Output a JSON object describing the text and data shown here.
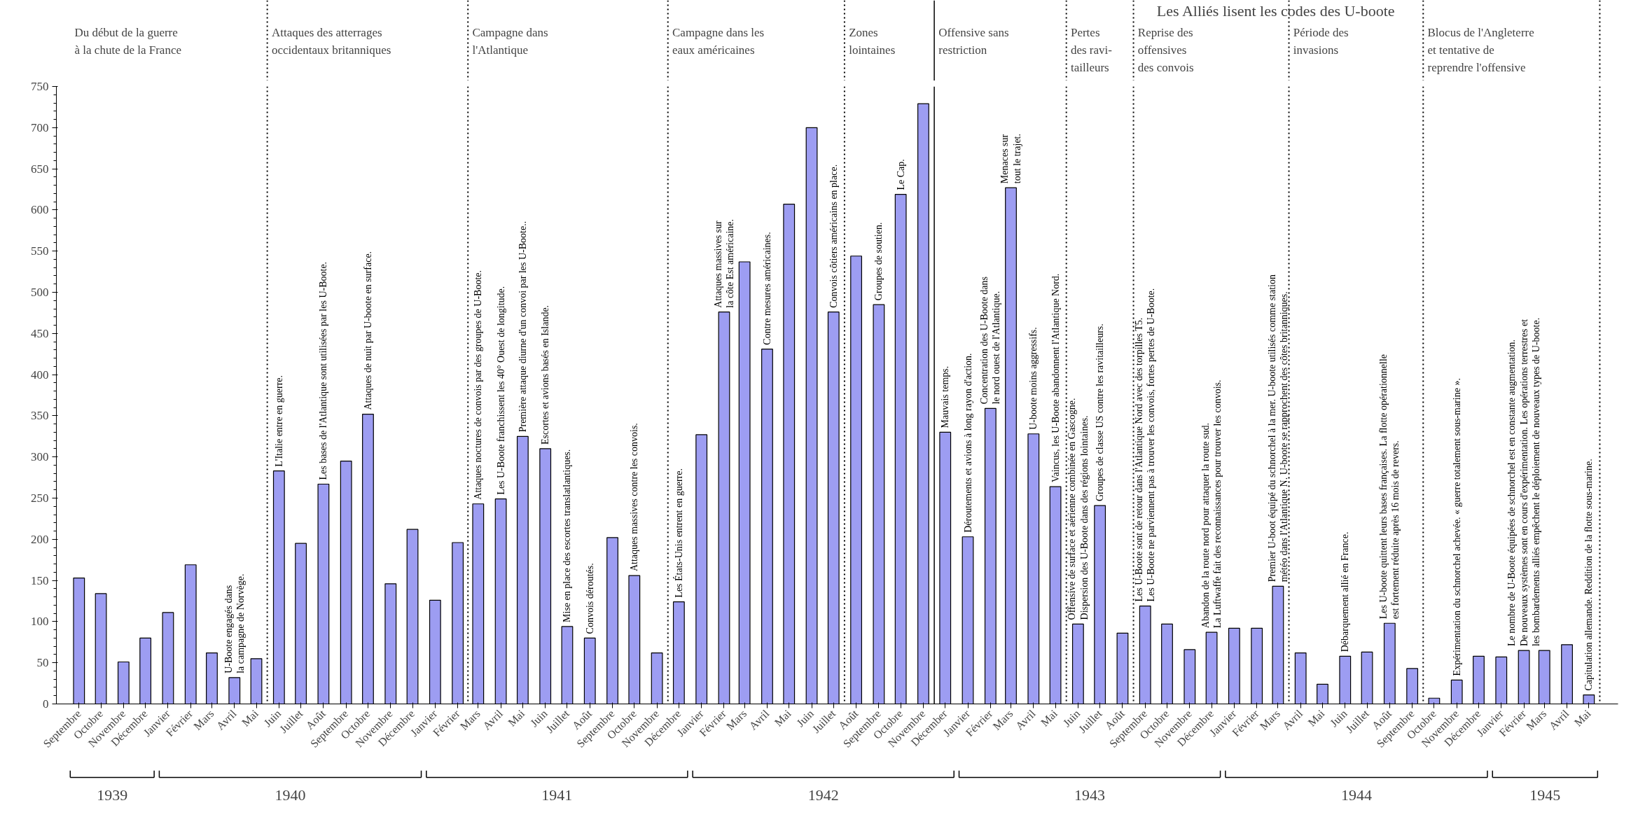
{
  "chart_data": {
    "type": "bar",
    "x": [
      "1939-09",
      "1939-10",
      "1939-11",
      "1939-12",
      "1940-01",
      "1940-02",
      "1940-03",
      "1940-04",
      "1940-05",
      "1940-06",
      "1940-07",
      "1940-08",
      "1940-09",
      "1940-10",
      "1940-11",
      "1940-12",
      "1941-01",
      "1941-02",
      "1941-03",
      "1941-04",
      "1941-05",
      "1941-06",
      "1941-07",
      "1941-08",
      "1941-09",
      "1941-10",
      "1941-11",
      "1941-12",
      "1942-01",
      "1942-02",
      "1942-03",
      "1942-04",
      "1942-05",
      "1942-06",
      "1942-07",
      "1942-08",
      "1942-09",
      "1942-10",
      "1942-11",
      "1942-12",
      "1943-01",
      "1943-02",
      "1943-03",
      "1943-04",
      "1943-05",
      "1943-06",
      "1943-07",
      "1943-08",
      "1943-09",
      "1943-10",
      "1943-11",
      "1943-12",
      "1944-01",
      "1944-02",
      "1944-03",
      "1944-04",
      "1944-05",
      "1944-06",
      "1944-07",
      "1944-08",
      "1944-09",
      "1944-10",
      "1944-11",
      "1944-12",
      "1945-01",
      "1945-02",
      "1945-03",
      "1945-04",
      "1945-05"
    ],
    "values": [
      153,
      134,
      51,
      80,
      111,
      169,
      62,
      32,
      55,
      283,
      195,
      267,
      295,
      352,
      146,
      212,
      126,
      196,
      243,
      249,
      325,
      310,
      94,
      80,
      202,
      156,
      62,
      124,
      327,
      476,
      537,
      431,
      607,
      700,
      476,
      544,
      485,
      619,
      729,
      330,
      203,
      359,
      627,
      328,
      264,
      97,
      241,
      86,
      119,
      97,
      66,
      87,
      92,
      92,
      143,
      62,
      24,
      58,
      63,
      98,
      43,
      7,
      29,
      58,
      57,
      65,
      65,
      72,
      11
    ],
    "color": "#9d9df2",
    "xlim": [
      "1939-08-01",
      "1945-06-10"
    ],
    "ylim": [
      0,
      750
    ],
    "yticks": [
      0,
      50,
      100,
      150,
      200,
      250,
      300,
      350,
      400,
      450,
      500,
      550,
      600,
      650,
      700,
      750
    ],
    "xticks": [
      {
        "value": "1939-09",
        "label": "Septembre"
      },
      {
        "value": "1939-10",
        "label": "Octobre"
      },
      {
        "value": "1939-11",
        "label": "Novembre"
      },
      {
        "value": "1939-12",
        "label": "Décembre"
      },
      {
        "value": "1940-01",
        "label": "Janvier"
      },
      {
        "value": "1940-02",
        "label": "Février"
      },
      {
        "value": "1940-03",
        "label": "Mars"
      },
      {
        "value": "1940-04",
        "label": "Avril"
      },
      {
        "value": "1940-05",
        "label": "Mai"
      },
      {
        "value": "1940-06",
        "label": "Juin"
      },
      {
        "value": "1940-07",
        "label": "Juillet"
      },
      {
        "value": "1940-08",
        "label": "Août"
      },
      {
        "value": "1940-09",
        "label": "Septembre"
      },
      {
        "value": "1940-10",
        "label": "Octobre"
      },
      {
        "value": "1940-11",
        "label": "Novembre"
      },
      {
        "value": "1940-12",
        "label": "Décembre"
      },
      {
        "value": "1941-01",
        "label": "Janvier"
      },
      {
        "value": "1941-02",
        "label": "Février"
      },
      {
        "value": "1941-03",
        "label": "Mars"
      },
      {
        "value": "1941-04",
        "label": "Avril"
      },
      {
        "value": "1941-05",
        "label": "Mai"
      },
      {
        "value": "1941-06",
        "label": "Juin"
      },
      {
        "value": "1941-07",
        "label": "Juillet"
      },
      {
        "value": "1941-08",
        "label": "Août"
      },
      {
        "value": "1941-09",
        "label": "Septembre"
      },
      {
        "value": "1941-10",
        "label": "Octobre"
      },
      {
        "value": "1941-11",
        "label": "Novembre"
      },
      {
        "value": "1941-12",
        "label": "Décembre"
      },
      {
        "value": "1942-01",
        "label": "Janvier"
      },
      {
        "value": "1942-02",
        "label": "Février"
      },
      {
        "value": "1942-03",
        "label": "Mars"
      },
      {
        "value": "1942-04",
        "label": "Avril"
      },
      {
        "value": "1942-05",
        "label": "Mai"
      },
      {
        "value": "1942-06",
        "label": "Juin"
      },
      {
        "value": "1942-07",
        "label": "Juillet"
      },
      {
        "value": "1942-08",
        "label": "Août"
      },
      {
        "value": "1942-09",
        "label": "Septembre"
      },
      {
        "value": "1942-10",
        "label": "Octobre"
      },
      {
        "value": "1942-11",
        "label": "Novembre"
      },
      {
        "value": "1942-12",
        "label": "Décember"
      },
      {
        "value": "1943-01",
        "label": "Janvier"
      },
      {
        "value": "1943-02",
        "label": "Février"
      },
      {
        "value": "1943-03",
        "label": "Mars"
      },
      {
        "value": "1943-04",
        "label": "Avril"
      },
      {
        "value": "1943-05",
        "label": "Mai"
      },
      {
        "value": "1943-06",
        "label": "Juin"
      },
      {
        "value": "1943-07",
        "label": "Juillet"
      },
      {
        "value": "1943-08",
        "label": "Août"
      },
      {
        "value": "1943-09",
        "label": "Septembre"
      },
      {
        "value": "1943-10",
        "label": "Octobre"
      },
      {
        "value": "1943-11",
        "label": "Novembre"
      },
      {
        "value": "1943-12",
        "label": "Décembre"
      },
      {
        "value": "1944-01",
        "label": "Janvier"
      },
      {
        "value": "1944-02",
        "label": "Février"
      },
      {
        "value": "1944-03",
        "label": "Mars"
      },
      {
        "value": "1944-04",
        "label": "Avril"
      },
      {
        "value": "1944-05",
        "label": "Mai"
      },
      {
        "value": "1944-06",
        "label": "Juin"
      },
      {
        "value": "1944-07",
        "label": "Juillet"
      },
      {
        "value": "1944-08",
        "label": "Août"
      },
      {
        "value": "1944-09",
        "label": "Septembre"
      },
      {
        "value": "1944-10",
        "label": "Octobre"
      },
      {
        "value": "1944-11",
        "label": "Novembre"
      },
      {
        "value": "1944-12",
        "label": "Décembre"
      },
      {
        "value": "1945-01",
        "label": "Janvier"
      },
      {
        "value": "1945-02",
        "label": "Février"
      },
      {
        "value": "1945-03",
        "label": "Mars"
      },
      {
        "value": "1945-04",
        "label": "Avril"
      },
      {
        "value": "1945-05",
        "label": "Mai"
      }
    ],
    "ref_lines": [
      {
        "axis": "x",
        "value": "1940-05-16",
        "label": "Attaques des atterrages\noccidentaux britanniques",
        "line_style": "dotted"
      },
      {
        "axis": "x",
        "value": "1941-02-15",
        "label": "Campagne dans\nl'Atlantique",
        "line_style": "dotted"
      },
      {
        "axis": "x",
        "value": "1941-11-16",
        "label": "Campagne dans les\neaux américaines",
        "line_style": "dotted"
      },
      {
        "axis": "x",
        "value": "1942-07-16",
        "label": "Zones\nlointaines",
        "line_style": "dotted"
      },
      {
        "axis": "x",
        "value": "1942-11-16",
        "label": "Offensive sans\nrestriction",
        "line_style": "solid"
      },
      {
        "axis": "x",
        "value": "1943-05-16",
        "label": "Pertes\ndes ravi-\ntailleurs",
        "line_style": "dotted"
      },
      {
        "axis": "x",
        "value": "1943-08-16",
        "label": "Reprise des\noffensives\ndes convois",
        "line_style": "dotted"
      },
      {
        "axis": "x",
        "value": "1944-03-16",
        "label": "Période des\ninvasions",
        "line_style": "dotted"
      },
      {
        "axis": "x",
        "value": "1944-09-16",
        "label": "Blocus de l'Angleterre\net tentative de\nreprendre l'offensive",
        "line_style": "dotted"
      },
      {
        "axis": "x",
        "value": "1945-05-16",
        "label": null,
        "line_style": "dotted"
      }
    ],
    "annotations": [
      "Du début de la guerre\nà la chute de la France",
      "Les Alliés lisent les codes des U-boote",
      "1939",
      "1940",
      "1941",
      "1942",
      "1943",
      "1944",
      "1945",
      {
        "text": "U-Boote engagés dans\nla campagne de Norvège.",
        "x": "1940-04",
        "y": 32
      },
      {
        "text": "L'Italie entre en guerre.",
        "x": "1940-06",
        "y": 283
      },
      {
        "text": "Les bases de l'Atlantique sont utilisées par les U-Boote.",
        "x": "1940-08",
        "y": 267
      },
      {
        "text": "Attaques de nuit par U-boote en surface.",
        "x": "1940-10",
        "y": 352
      },
      {
        "text": "Attaques noctures de convois par des groupes de U-Boote.",
        "x": "1941-03",
        "y": 243
      },
      {
        "text": "Les U-Boote franchissent les 40° Ouest de longitude.",
        "x": "1941-04",
        "y": 249
      },
      {
        "text": "Première attaque diurne d'un convoi par les U-Boote..",
        "x": "1941-05",
        "y": 325
      },
      {
        "text": "Escortes et avions basés en Islande.",
        "x": "1941-06",
        "y": 310
      },
      {
        "text": "Mise en place des escortes translatlantiques.",
        "x": "1941-07",
        "y": 94
      },
      {
        "text": "Convois déroutés.",
        "x": "1941-08",
        "y": 80
      },
      {
        "text": "Attaques massives contre les convois.",
        "x": "1941-10",
        "y": 156
      },
      {
        "text": "Les États-Unis entrent en guerre.",
        "x": "1941-12",
        "y": 124
      },
      {
        "text": "Attaques massives sur\nla côte Est américaine.",
        "x": "1942-02",
        "y": 476
      },
      {
        "text": "Contre mesures américaines.",
        "x": "1942-04",
        "y": 431
      },
      {
        "text": "Convois côtiers américains en place.",
        "x": "1942-07",
        "y": 476
      },
      {
        "text": "Groupes de soutien.",
        "x": "1942-09",
        "y": 485
      },
      {
        "text": "Le Cap.",
        "x": "1942-10",
        "y": 619
      },
      {
        "text": "Mauvais temps.",
        "x": "1942-12",
        "y": 330
      },
      {
        "text": "Déroutements et avions à long rayon d'action.",
        "x": "1943-01",
        "y": 203
      },
      {
        "text": "Concentration des U-Boote dans\nle nord ouest de l'Atlantique.",
        "x": "1943-02",
        "y": 359
      },
      {
        "text": "Menaces sur\ntout le trajet.",
        "x": "1943-03",
        "y": 627
      },
      {
        "text": "U-boote moins aggressifs.",
        "x": "1943-04",
        "y": 328
      },
      {
        "text": "Vaincus, les U-Boote abandonnent l'Atlantique Nord.",
        "x": "1943-05",
        "y": 264
      },
      {
        "text": "Offensive de surface et aérienne combinée en Gascogne.\nDispersion des U-Boote dans des régions lointaines.",
        "x": "1943-06",
        "y": 97
      },
      {
        "text": "Groupes de classe US contre les ravitailleurs.",
        "x": "1943-07",
        "y": 241
      },
      {
        "text": "Les U-Boote sont de retour dans l'Atlantique Nord avec des torpilles T5.\nLes U-Boote ne parviennent pas à trouver les convois, fortes pertes de U-Boote.",
        "x": "1943-09",
        "y": 119
      },
      {
        "text": "Abandon de la route nord pour attaquer la route sud.\nLa Luftwaffe fait des reconnaissances pour trouver les convois.",
        "x": "1943-12",
        "y": 87
      },
      {
        "text": "Premier U-boot équipé du schnorchel à la mer. U-boote utilisés comme station\nmétéo dans l'Atlantique N. U-boote se rapprochent des côtes britanniques.",
        "x": "1944-03",
        "y": 143
      },
      {
        "text": "Débarquement allié en France.",
        "x": "1944-06",
        "y": 58
      },
      {
        "text": "Les U-boote quittent leurs bases françaises. La flotte opérationnelle\nest fortement réduite après 16 mois de revers.",
        "x": "1944-08",
        "y": 98
      },
      {
        "text": "Expérimentation du schnorchel achevée. « guerre totalement sous-marine ».",
        "x": "1944-11",
        "y": 29
      },
      {
        "text": "Le nombre de U-Boote équipées de schnorchel est en constante augmentation.\nDe nouveaux systèmes sont en cours d'expérimentation. Les opérations terrestres et\nles bombardements alliés empêchent le déploiement de nouveaux types de U-boote.",
        "x": "1945-02",
        "y": 65
      },
      {
        "text": "Capitulation allemande. Reddition de la flotte sous-marine.",
        "x": "1945-05",
        "y": 11
      }
    ]
  }
}
